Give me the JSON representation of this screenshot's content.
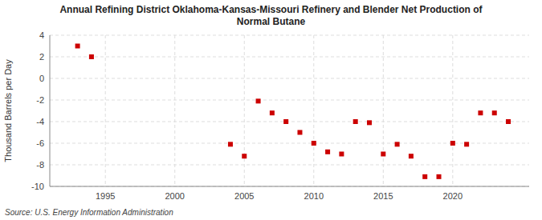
{
  "chart_data": {
    "type": "scatter",
    "title": "Annual Refining District Oklahoma-Kansas-Missouri Refinery and Blender Net Production of\nNormal Butane",
    "y_label": "Thousand Barrels per Day",
    "source": "Source: U.S. Energy Information Administration",
    "x": [
      1993,
      1994,
      2004,
      2005,
      2006,
      2007,
      2008,
      2009,
      2010,
      2011,
      2012,
      2013,
      2014,
      2015,
      2016,
      2017,
      2018,
      2019,
      2020,
      2021,
      2022,
      2023,
      2024
    ],
    "values": [
      3.0,
      2.0,
      -6.1,
      -7.2,
      -2.1,
      -3.2,
      -4.0,
      -5.0,
      -6.0,
      -6.8,
      -7.0,
      -4.0,
      -4.1,
      -7.0,
      -6.1,
      -7.2,
      -9.1,
      -9.1,
      -6.0,
      -6.1,
      -3.2,
      -3.2,
      -4.0
    ],
    "color": "#cc0000",
    "marker": "square",
    "xlim": [
      1991.0,
      2025.5
    ],
    "ylim": [
      -10,
      4
    ],
    "xticks": [
      1995,
      2000,
      2005,
      2010,
      2015,
      2020
    ],
    "yticks": [
      -10,
      -8,
      -6,
      -4,
      -2,
      0,
      2,
      4
    ],
    "grid": true
  }
}
